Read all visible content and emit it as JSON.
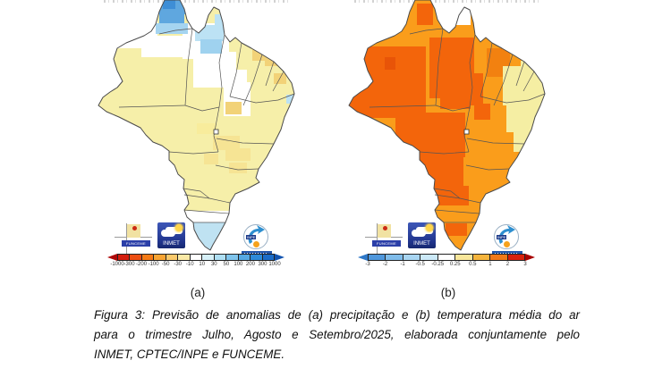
{
  "figure": {
    "panels": [
      {
        "id": "a",
        "label": "(a)",
        "kind": "precipitation-anomaly-map",
        "colorbar": {
          "tick_labels": [
            "-1000",
            "-300",
            "-200",
            "-100",
            "-50",
            "-30",
            "-10",
            "10",
            "30",
            "50",
            "100",
            "200",
            "300",
            "1000"
          ],
          "segment_colors": [
            "#D41E0E",
            "#EC4E12",
            "#F57A16",
            "#F8A433",
            "#F9C96B",
            "#FAE9A6",
            "#FFFFFF",
            "#D6F0F8",
            "#AEDFF4",
            "#7FC4EC",
            "#55A8E2",
            "#2E8AD8",
            "#1B6CC8"
          ],
          "left_arrow_color": "#AE0909",
          "right_arrow_color": "#1254B0"
        }
      },
      {
        "id": "b",
        "label": "(b)",
        "kind": "temperature-anomaly-map",
        "colorbar": {
          "tick_labels": [
            "-3",
            "-2",
            "-1",
            "-0.5",
            "-0.25",
            "0.25",
            "0.5",
            "1",
            "2",
            "3"
          ],
          "segment_colors": [
            "#4F97DC",
            "#7FBCEA",
            "#A8D5F2",
            "#CCE9F8",
            "#FFFFFF",
            "#F9E79B",
            "#F5B43C",
            "#F07818",
            "#D8200C"
          ],
          "left_arrow_color": "#2E78C8",
          "right_arrow_color": "#A80000"
        }
      }
    ],
    "logos": {
      "funceme_label": "FUNCEME",
      "inmet_label": "INMET",
      "inpe_label": "INPE"
    },
    "map_colors": {
      "precip_base": "#F6EFA9",
      "precip_white": "#FFFFFF",
      "precip_blue": "#5FA7DF",
      "precip_blue_dark": "#3E8ED6",
      "precip_blue_light": "#A5D4F0",
      "precip_cyan": "#9FD2EF",
      "precip_cyan_light": "#BCE2F4",
      "precip_amber": "#F2D278",
      "precip_amber_light": "#F6E494",
      "precip_amber_faint": "#F8EC9C",
      "precip_south_blue": "#BFE2F2",
      "temp_base": "#FA9D1B",
      "temp_dark": "#F3650B",
      "temp_darker": "#E85408",
      "temp_mid": "#F28110",
      "temp_pale": "#F5EEA3",
      "temp_white": "#FFFFFF",
      "border": "#4A4A4A"
    },
    "caption_lines": [
      "Figura 3: Previsão de anomalias de (a) precipitação e (b) temperatura média do ar",
      "para o trimestre Julho, Agosto e Setembro/2025, elaborada conjuntamente pelo",
      "INMET, CPTEC/INPE e FUNCEME."
    ]
  }
}
